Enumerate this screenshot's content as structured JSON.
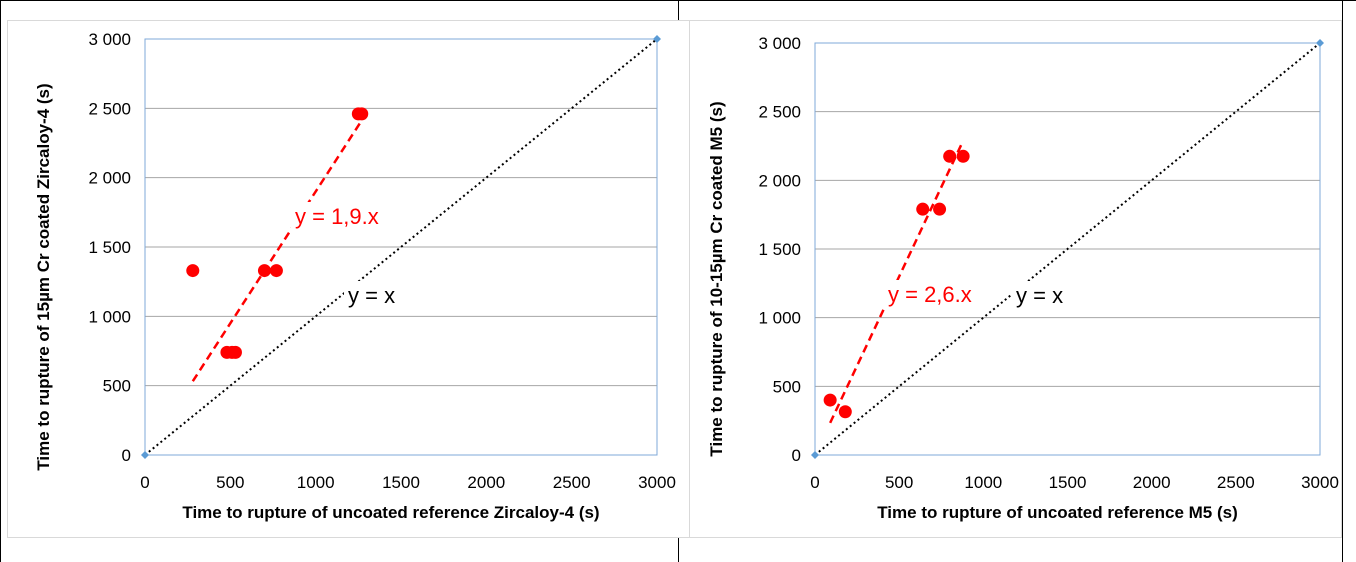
{
  "chart_data": [
    {
      "type": "scatter",
      "xlabel": "Time to rupture of uncoated reference Zircaloy-4 (s)",
      "ylabel": "Time to rupture of 15µm Cr coated Zircaloy-4 (s)",
      "xlim": [
        0,
        3000
      ],
      "ylim": [
        0,
        3000
      ],
      "xticks": [
        "0",
        "500",
        "1000",
        "1500",
        "2000",
        "2500",
        "3000"
      ],
      "yticks": [
        "0",
        "500",
        "1 000",
        "1 500",
        "2 000",
        "2 500",
        "3 000"
      ],
      "grid": "horizontal",
      "series": [
        {
          "name": "",
          "style": "red-markers",
          "x": [
            280,
            480,
            510,
            530,
            700,
            770,
            1250,
            1270
          ],
          "y": [
            1330,
            740,
            740,
            740,
            1330,
            1330,
            2460,
            2460
          ]
        },
        {
          "name": "",
          "style": "reference-points",
          "x": [
            0,
            3000
          ],
          "y": [
            0,
            3000
          ]
        }
      ],
      "trendlines": [
        {
          "label": "y = 1,9.x",
          "slope": 1.9,
          "from_x": 280,
          "to_x": 1265,
          "color": "#ff0000",
          "style": "dashed"
        },
        {
          "label": "y = x",
          "slope": 1.0,
          "from_x": 0,
          "to_x": 3000,
          "color": "#000000",
          "style": "dotted"
        }
      ],
      "annotations": [
        "y = 1,9.x",
        "y = x"
      ]
    },
    {
      "type": "scatter",
      "xlabel": "Time to rupture of uncoated reference M5 (s)",
      "ylabel": "Time to rupture of 10-15µm Cr coated M5 (s)",
      "xlim": [
        0,
        3000
      ],
      "ylim": [
        0,
        3000
      ],
      "xticks": [
        "0",
        "500",
        "1000",
        "1500",
        "2000",
        "2500",
        "3000"
      ],
      "yticks": [
        "0",
        "500",
        "1 000",
        "1 500",
        "2 000",
        "2 500",
        "3 000"
      ],
      "grid": "horizontal",
      "series": [
        {
          "name": "",
          "style": "red-markers",
          "x": [
            90,
            180,
            640,
            740,
            800,
            880
          ],
          "y": [
            400,
            315,
            1790,
            1790,
            2175,
            2175
          ]
        },
        {
          "name": "",
          "style": "reference-points",
          "x": [
            0,
            3000
          ],
          "y": [
            0,
            3000
          ]
        }
      ],
      "trendlines": [
        {
          "label": "y = 2,6.x",
          "slope": 2.6,
          "from_x": 90,
          "to_x": 880,
          "color": "#ff0000",
          "style": "dashed"
        },
        {
          "label": "y = x",
          "slope": 1.0,
          "from_x": 0,
          "to_x": 3000,
          "color": "#000000",
          "style": "dotted"
        }
      ],
      "annotations": [
        "y = 2,6.x",
        "y = x"
      ]
    }
  ],
  "colors": {
    "marker": "#ff0000",
    "grid": "#a6a6a6",
    "plot_border": "#7fa9d8",
    "ref_point": "#5b9bd5"
  }
}
